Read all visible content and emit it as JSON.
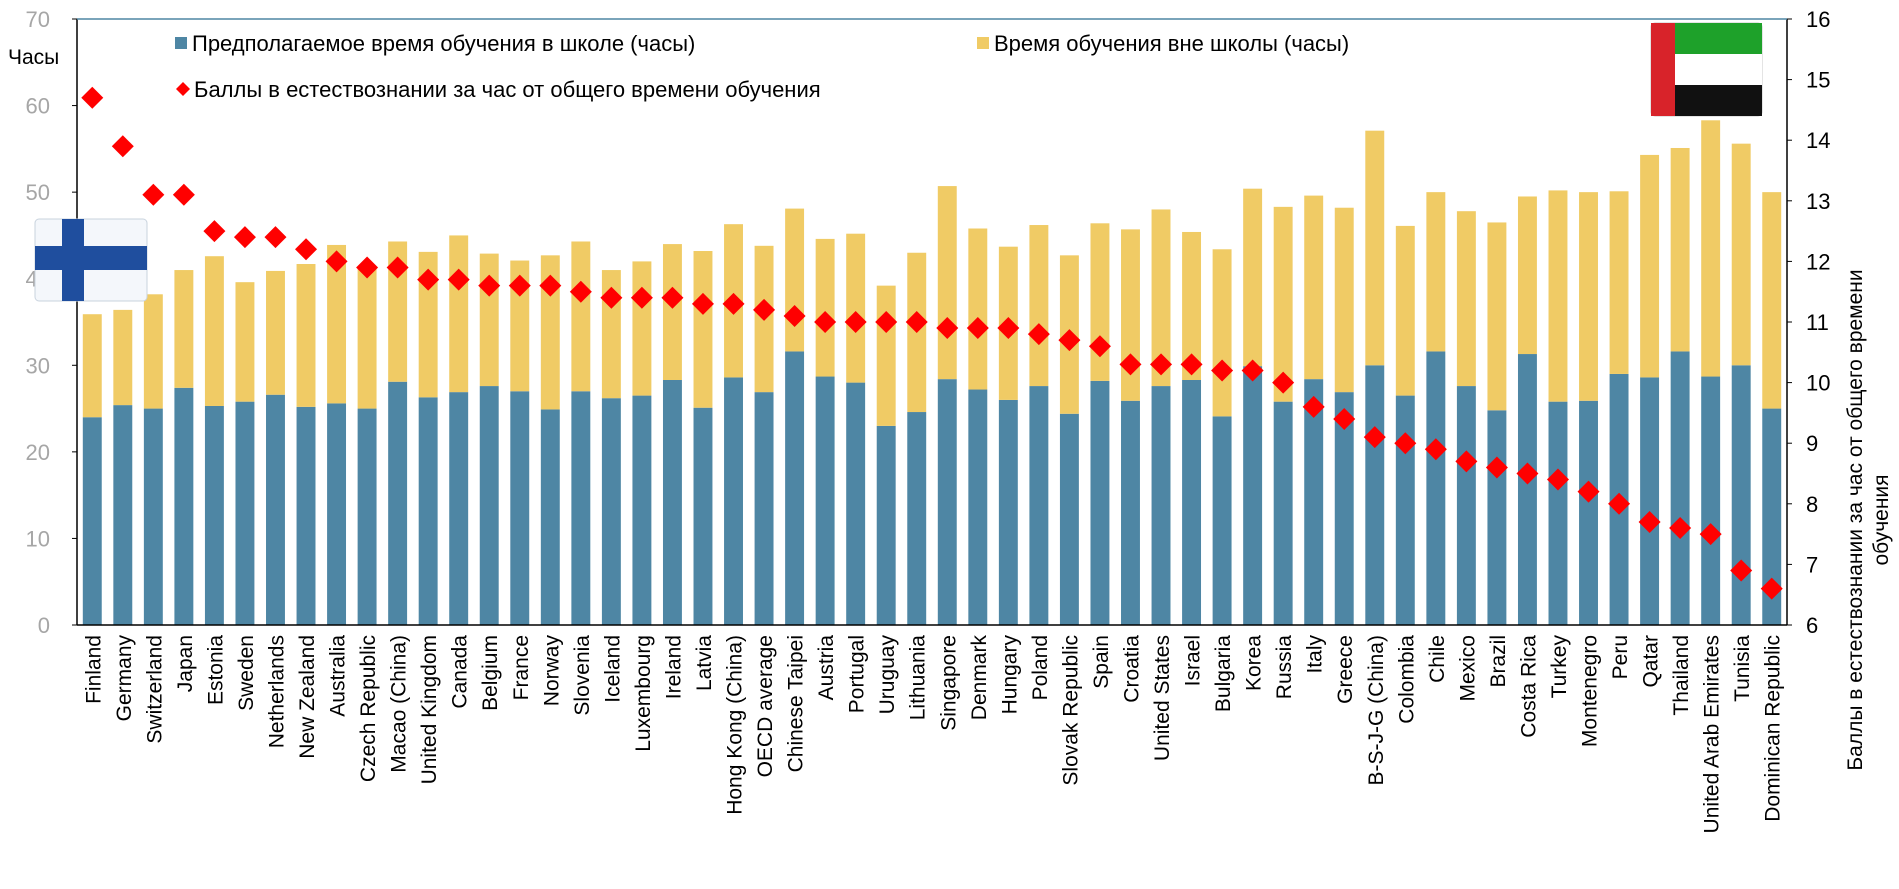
{
  "chart_data": {
    "type": "bar",
    "stacked": true,
    "categories": [
      "Finland",
      "Germany",
      "Switzerland",
      "Japan",
      "Estonia",
      "Sweden",
      "Netherlands",
      "New Zealand",
      "Australia",
      "Czech Republic",
      "Macao (China)",
      "United Kingdom",
      "Canada",
      "Belgium",
      "France",
      "Norway",
      "Slovenia",
      "Iceland",
      "Luxembourg",
      "Ireland",
      "Latvia",
      "Hong Kong (China)",
      "OECD average",
      "Chinese Taipei",
      "Austria",
      "Portugal",
      "Uruguay",
      "Lithuania",
      "Singapore",
      "Denmark",
      "Hungary",
      "Poland",
      "Slovak Republic",
      "Spain",
      "Croatia",
      "United States",
      "Israel",
      "Bulgaria",
      "Korea",
      "Russia",
      "Italy",
      "Greece",
      "B-S-J-G (China)",
      "Colombia",
      "Chile",
      "Mexico",
      "Brazil",
      "Costa Rica",
      "Turkey",
      "Montenegro",
      "Peru",
      "Qatar",
      "Thailand",
      "United Arab Emirates",
      "Tunisia",
      "Dominican Republic"
    ],
    "series": [
      {
        "name": "Предполагаемое время обучения в школе (часы)",
        "color": "#4e86a4",
        "axis": "left",
        "values": [
          24.0,
          25.4,
          25.0,
          27.4,
          25.3,
          25.8,
          26.6,
          25.2,
          25.6,
          25.0,
          28.1,
          26.3,
          26.9,
          27.6,
          27.0,
          24.9,
          27.0,
          26.2,
          26.5,
          28.3,
          25.1,
          28.6,
          26.9,
          31.6,
          28.7,
          28.0,
          23.0,
          24.6,
          28.4,
          27.2,
          26.0,
          27.6,
          24.4,
          28.2,
          25.9,
          27.6,
          28.3,
          24.1,
          29.9,
          25.8,
          28.4,
          26.9,
          30.0,
          26.5,
          31.6,
          27.6,
          24.8,
          31.3,
          25.8,
          25.9,
          29.0,
          28.6,
          31.6,
          28.7,
          30.0,
          25.0
        ]
      },
      {
        "name": "Время обучения вне школы (часы)",
        "color": "#f0cb65",
        "axis": "left",
        "values": [
          11.9,
          11.0,
          13.2,
          13.6,
          17.3,
          13.8,
          14.3,
          16.5,
          18.3,
          16.2,
          16.2,
          16.8,
          18.1,
          15.3,
          15.1,
          17.8,
          17.3,
          14.8,
          15.5,
          15.7,
          18.1,
          17.7,
          16.9,
          16.5,
          15.9,
          17.2,
          16.2,
          18.4,
          22.3,
          18.6,
          17.7,
          18.6,
          18.3,
          18.2,
          19.8,
          20.4,
          17.1,
          19.3,
          20.5,
          22.5,
          21.2,
          21.3,
          27.1,
          19.6,
          18.4,
          20.2,
          21.7,
          18.2,
          24.4,
          24.1,
          21.1,
          25.7,
          23.5,
          29.6,
          25.6,
          25.0
        ]
      },
      {
        "name": "Баллы в естествознании за час от общего времени обучения",
        "color": "#ff0000",
        "axis": "right",
        "marker": "diamond",
        "values": [
          14.7,
          13.9,
          13.1,
          13.1,
          12.5,
          12.4,
          12.4,
          12.2,
          12.0,
          11.9,
          11.9,
          11.7,
          11.7,
          11.6,
          11.6,
          11.6,
          11.5,
          11.4,
          11.4,
          11.4,
          11.3,
          11.3,
          11.2,
          11.1,
          11.0,
          11.0,
          11.0,
          11.0,
          10.9,
          10.9,
          10.9,
          10.8,
          10.7,
          10.6,
          10.3,
          10.3,
          10.3,
          10.2,
          10.2,
          10.0,
          9.6,
          9.4,
          9.1,
          9.0,
          8.9,
          8.7,
          8.6,
          8.5,
          8.4,
          8.2,
          8.0,
          7.7,
          7.6,
          7.5,
          6.9,
          6.6
        ]
      }
    ],
    "ylabel": "Часы",
    "ylim": [
      0,
      70
    ],
    "yticks": [
      "0",
      "10",
      "20",
      "30",
      "40",
      "50",
      "60",
      "70"
    ],
    "y2label": "Баллы в естествознании за час от общего времени обучения",
    "y2lim": [
      6,
      16
    ],
    "y2ticks": [
      "6",
      "7",
      "8",
      "9",
      "10",
      "11",
      "12",
      "13",
      "14",
      "15",
      "16"
    ],
    "legend": [
      "Предполагаемое время обучения в школе (часы)",
      "Время обучения вне школы (часы)",
      "Баллы в естествознании за час от общего времени обучения"
    ],
    "grid": false,
    "flags": [
      "finland-flag",
      "uae-flag"
    ]
  }
}
